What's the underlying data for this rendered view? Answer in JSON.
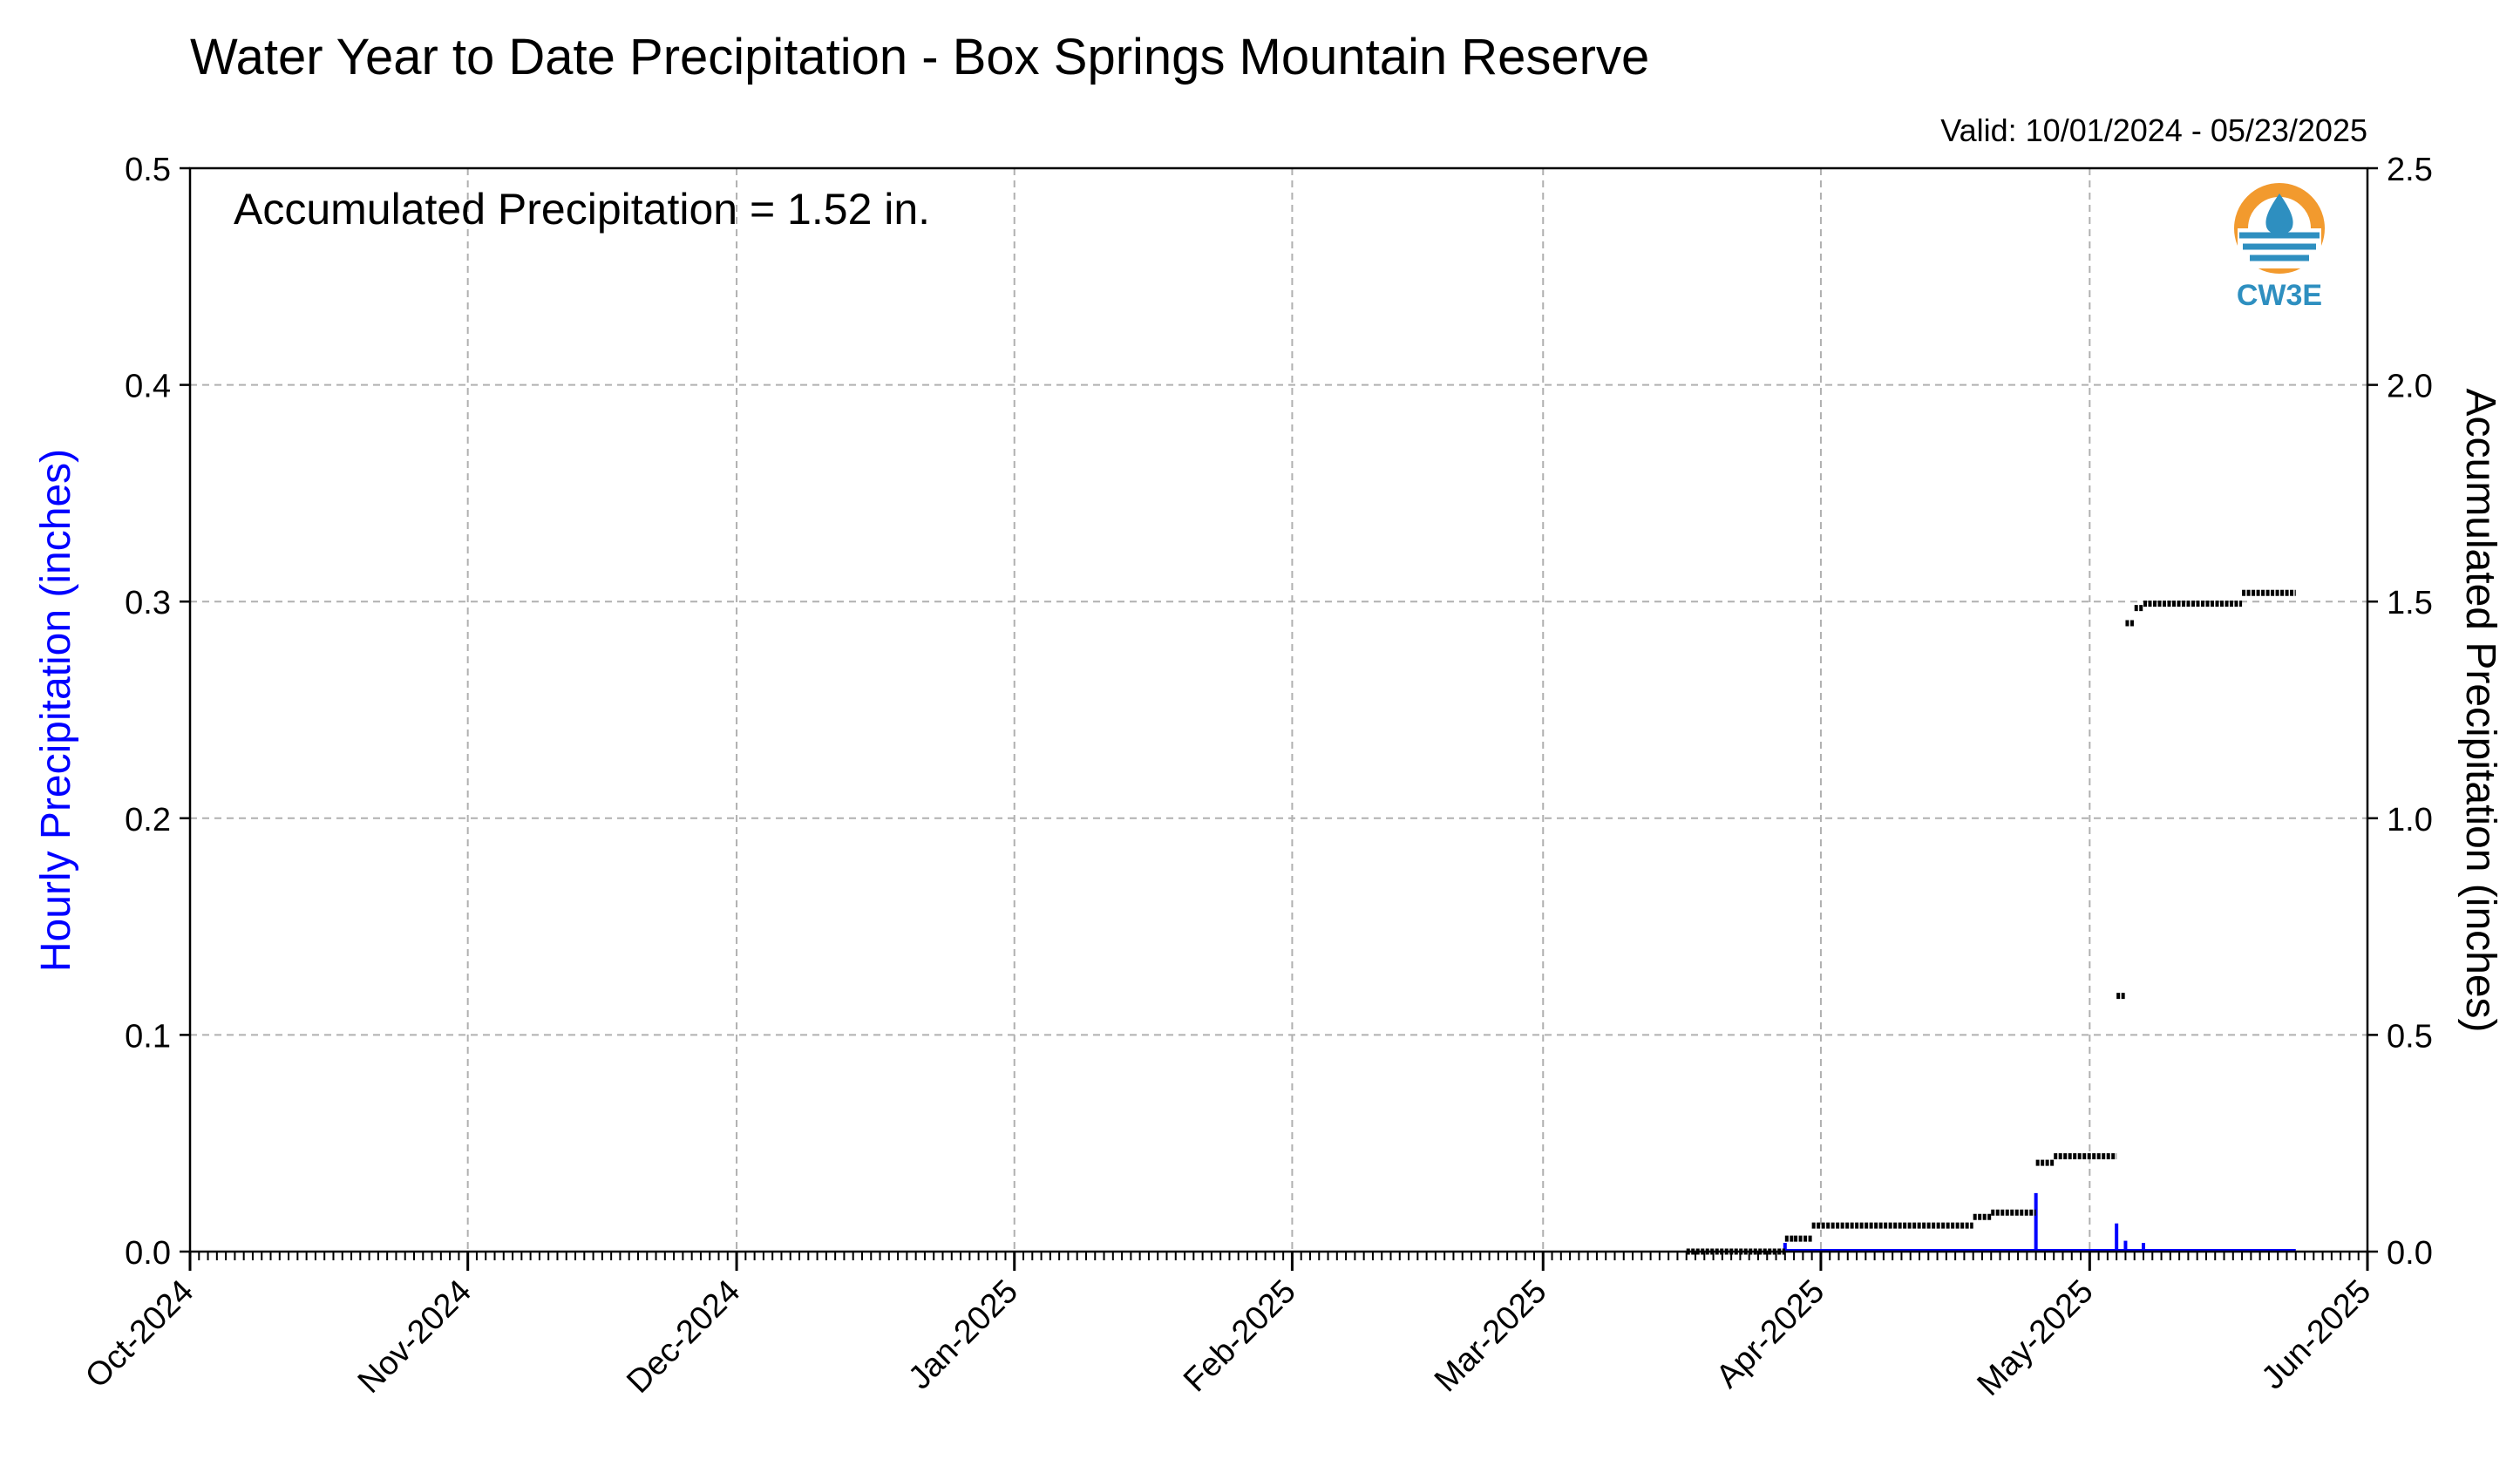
{
  "chart_data": {
    "type": "bar",
    "title": "Water Year to Date Precipitation - Box Springs Mountain Reserve",
    "subtitle": "Valid: 10/01/2024 - 05/23/2025",
    "annotation": "Accumulated Precipitation = 1.52 in.",
    "logo_text": "CW3E",
    "y_left_label": "Hourly Precipitation (inches)",
    "y_right_label": "Accumulated Precipitation (inches)",
    "x_range": [
      "2024-10-01",
      "2025-06-01"
    ],
    "y_left_range": [
      0,
      0.5
    ],
    "y_right_range": [
      0,
      2.5
    ],
    "grid": true,
    "x_tick_dates": [
      "2024-10-01",
      "2024-11-01",
      "2024-12-01",
      "2025-01-01",
      "2025-02-01",
      "2025-03-01",
      "2025-04-01",
      "2025-05-01",
      "2025-06-01"
    ],
    "x_tick_labels": [
      "Oct-2024",
      "Nov-2024",
      "Dec-2024",
      "Jan-2025",
      "Feb-2025",
      "Mar-2025",
      "Apr-2025",
      "May-2025",
      "Jun-2025"
    ],
    "y_left_ticks": [
      "0.0",
      "0.1",
      "0.2",
      "0.3",
      "0.4",
      "0.5"
    ],
    "y_right_ticks": [
      "0.0",
      "0.5",
      "1.0",
      "1.5",
      "2.0",
      "2.5"
    ],
    "colors": {
      "hourly": "#0000ff",
      "accumulated": "#000000",
      "grid": "#b0b0b0",
      "logo_blue": "#2e8fc0",
      "logo_orange": "#f29a2e"
    },
    "series": [
      {
        "name": "Hourly Precipitation (inches)",
        "axis": "left",
        "type": "bar",
        "points": [
          {
            "x": "2025-03-28",
            "y": 0.004
          },
          {
            "x": "2025-04-25",
            "y": 0.027
          },
          {
            "x": "2025-05-04",
            "y": 0.013
          },
          {
            "x": "2025-05-05",
            "y": 0.005
          },
          {
            "x": "2025-05-07",
            "y": 0.004
          }
        ]
      },
      {
        "name": "Accumulated Precipitation (inches)",
        "axis": "right",
        "type": "step",
        "segments": [
          {
            "start": "2025-03-17",
            "end": "2025-03-28",
            "y": 0.0
          },
          {
            "start": "2025-03-28",
            "end": "2025-03-29",
            "y": 0.03
          },
          {
            "start": "2025-03-29",
            "end": "2025-03-31",
            "y": 0.03
          },
          {
            "start": "2025-03-31",
            "end": "2025-04-18",
            "y": 0.06
          },
          {
            "start": "2025-04-18",
            "end": "2025-04-20",
            "y": 0.08
          },
          {
            "start": "2025-04-20",
            "end": "2025-04-25",
            "y": 0.09
          },
          {
            "start": "2025-04-25",
            "end": "2025-04-27",
            "y": 0.205
          },
          {
            "start": "2025-04-27",
            "end": "2025-05-04",
            "y": 0.22
          },
          {
            "start": "2025-05-04",
            "end": "2025-05-05",
            "y": 0.59
          },
          {
            "start": "2025-05-05",
            "end": "2025-05-06",
            "y": 1.45
          },
          {
            "start": "2025-05-06",
            "end": "2025-05-07",
            "y": 1.485
          },
          {
            "start": "2025-05-07",
            "end": "2025-05-18",
            "y": 1.495
          },
          {
            "start": "2025-05-18",
            "end": "2025-05-24",
            "y": 1.52
          }
        ]
      }
    ]
  }
}
